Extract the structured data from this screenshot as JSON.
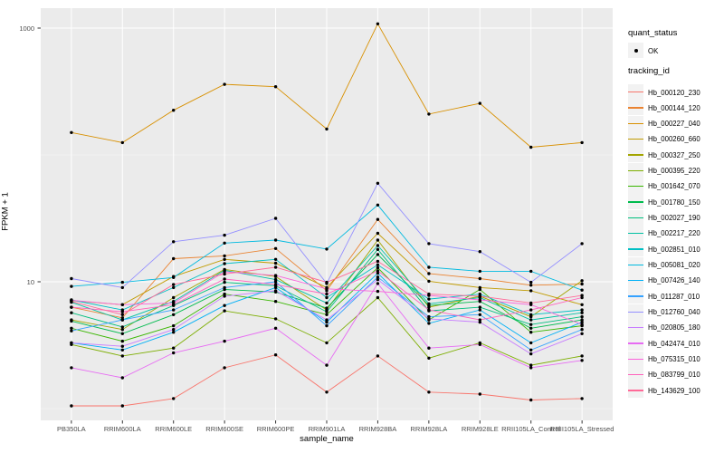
{
  "colors": {
    "panel_bg": "#EBEBEB",
    "grid_major": "#FFFFFF",
    "grid_minor": "#F7F7F7",
    "axis_text": "#4D4D4D",
    "tick_mark": "#333333",
    "point": "#000000",
    "legend_key_bg": "#F2F2F2"
  },
  "legend": {
    "quant_status": {
      "title": "quant_status",
      "items": [
        {
          "label": "OK",
          "marker": "black-point"
        }
      ]
    },
    "tracking_id": {
      "title": "tracking_id"
    }
  },
  "axes": {
    "y_ticks": [
      {
        "label": "1000",
        "value": 1000
      },
      {
        "label": "10",
        "value": 10
      }
    ],
    "y_minor_breaks": [
      1,
      100
    ]
  },
  "chart_data": {
    "type": "line",
    "title": "",
    "xlabel": "sample_name",
    "ylabel": "FPKM + 1",
    "y_scale": "log10",
    "ylim": [
      0.9,
      1500
    ],
    "grid": true,
    "legend_position": "right",
    "point_marker": "black dot (quant_status OK)",
    "categories": [
      "PB350LA",
      "RRIM600LA",
      "RRIM600LE",
      "RRIM600SE",
      "RRIM600PE",
      "RRIM901LA",
      "RRIM928BA",
      "RRIM928LA",
      "RRIM928LE",
      "RRII105LA_Control",
      "RRII105LA_Stressed"
    ],
    "series": [
      {
        "name": "Hb_000120_230",
        "color": "#F8766D",
        "values": [
          1.05,
          1.05,
          1.2,
          2.1,
          2.65,
          1.35,
          2.6,
          1.35,
          1.3,
          1.17,
          1.2
        ]
      },
      {
        "name": "Hb_000144_120",
        "color": "#EA8331",
        "values": [
          6.3,
          5.2,
          15.2,
          16,
          18.3,
          8.5,
          31,
          11.6,
          10.6,
          9.4,
          9.6
        ]
      },
      {
        "name": "Hb_000227_040",
        "color": "#D89000",
        "values": [
          150,
          125,
          225,
          360,
          345,
          160,
          1080,
          210,
          255,
          115,
          125
        ]
      },
      {
        "name": "Hb_000260_660",
        "color": "#C09B00",
        "values": [
          7.1,
          6.6,
          11,
          15,
          14,
          9,
          24.1,
          10.1,
          9,
          8.5,
          6.6
        ]
      },
      {
        "name": "Hb_000327_250",
        "color": "#A3A500",
        "values": [
          5,
          4.2,
          7.5,
          12.5,
          11,
          6,
          21.3,
          6.3,
          7.7,
          5.3,
          10.2
        ]
      },
      {
        "name": "Hb_000395_220",
        "color": "#7CAE00",
        "values": [
          3.2,
          2.6,
          3,
          5.9,
          5.1,
          3.3,
          7.5,
          2.5,
          3.3,
          2.2,
          2.6
        ]
      },
      {
        "name": "Hb_001642_070",
        "color": "#39B600",
        "values": [
          4.3,
          3.4,
          4.5,
          8,
          7,
          5.5,
          12.9,
          5,
          8.7,
          4,
          4.5
        ]
      },
      {
        "name": "Hb_001780_150",
        "color": "#00BB4E",
        "values": [
          4.9,
          3.9,
          5.5,
          8.7,
          8.3,
          6.2,
          16.4,
          6.5,
          7,
          4.3,
          5
        ]
      },
      {
        "name": "Hb_002027_190",
        "color": "#00BF7D",
        "values": [
          5.7,
          4.4,
          6.5,
          9.9,
          9.3,
          5.8,
          18,
          5.9,
          6.3,
          4.6,
          5.3
        ]
      },
      {
        "name": "Hb_002217_220",
        "color": "#00C1A3",
        "values": [
          6.9,
          5,
          7,
          12.3,
          10.4,
          6.8,
          19.3,
          6.7,
          7.5,
          5,
          5.7
        ]
      },
      {
        "name": "Hb_002851_010",
        "color": "#00BFC4",
        "values": [
          7.2,
          6,
          9,
          13.9,
          15,
          7.5,
          13.6,
          7.3,
          8,
          5.5,
          6
        ]
      },
      {
        "name": "Hb_005081_020",
        "color": "#00BAE0",
        "values": [
          9.2,
          9.9,
          10.8,
          20.2,
          21.3,
          18.1,
          40.3,
          13,
          12.1,
          12.1,
          8.6
        ]
      },
      {
        "name": "Hb_007426_140",
        "color": "#00B0F6",
        "values": [
          3.3,
          2.9,
          4,
          6.5,
          9,
          4.8,
          11.7,
          4.7,
          6,
          3.3,
          4.8
        ]
      },
      {
        "name": "Hb_011287_010",
        "color": "#35A2FF",
        "values": [
          4.1,
          5,
          6,
          9,
          10,
          4.5,
          10.9,
          5.3,
          5.5,
          2.9,
          4.2
        ]
      },
      {
        "name": "Hb_012760_040",
        "color": "#9590FF",
        "values": [
          10.6,
          9,
          20.7,
          23.3,
          31.6,
          9.7,
          59.8,
          20,
          17.3,
          9.9,
          20
        ]
      },
      {
        "name": "Hb_020805_180",
        "color": "#C77CFF",
        "values": [
          3.3,
          3.1,
          4.2,
          7.7,
          8.5,
          5,
          10.4,
          5.1,
          4.8,
          2.7,
          3.9
        ]
      },
      {
        "name": "Hb_042474_010",
        "color": "#E76BF3",
        "values": [
          2.1,
          1.75,
          2.75,
          3.4,
          4.3,
          2.2,
          9.7,
          3,
          3.2,
          2.1,
          2.4
        ]
      },
      {
        "name": "Hb_075315_010",
        "color": "#FA62DB",
        "values": [
          7.15,
          6.6,
          6.8,
          12,
          11.2,
          8.8,
          8.4,
          7.8,
          7.2,
          6.6,
          4.6
        ]
      },
      {
        "name": "Hb_083799_010",
        "color": "#FF62BC",
        "values": [
          6.3,
          5.8,
          6.6,
          10.5,
          9.5,
          8,
          12.2,
          6,
          5,
          6,
          7.5
        ]
      },
      {
        "name": "Hb_143629_100",
        "color": "#FF6A98",
        "values": [
          7,
          5.5,
          9.5,
          11.5,
          13,
          9.9,
          14.5,
          8,
          7.7,
          6.8,
          7.8
        ]
      }
    ]
  }
}
